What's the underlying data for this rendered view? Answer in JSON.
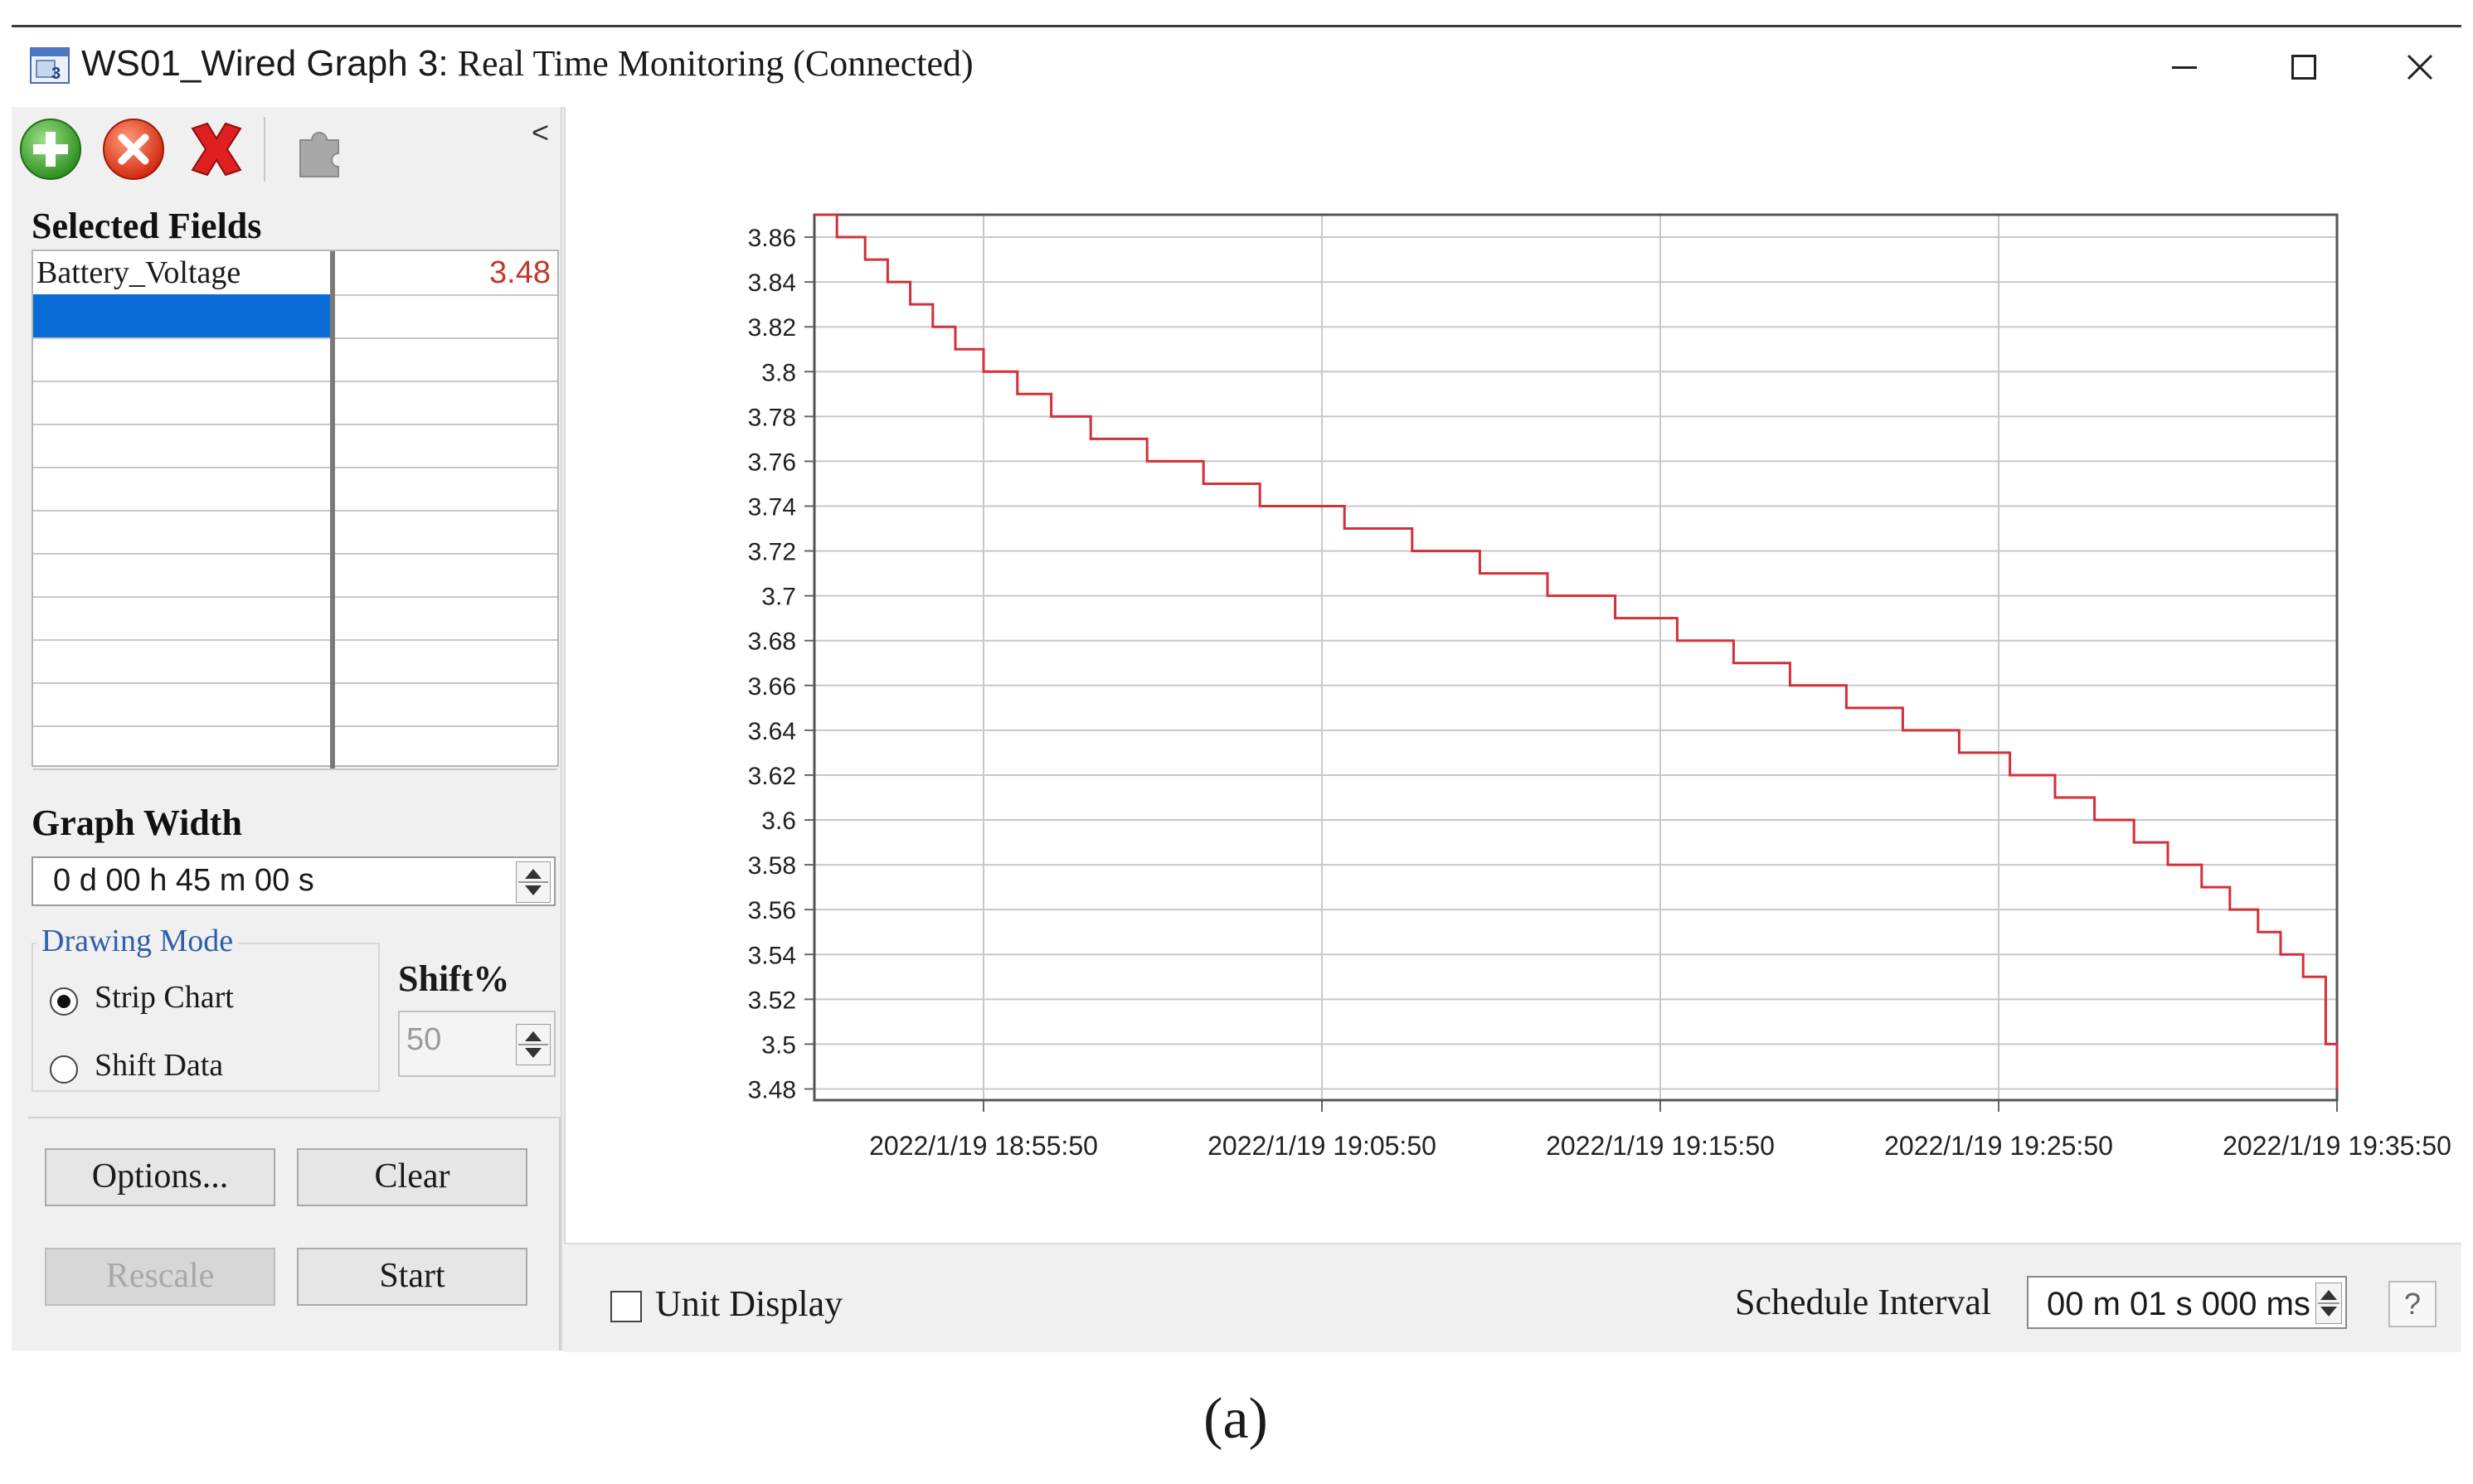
{
  "window": {
    "title_prefix": "WS01_Wired Graph 3:",
    "title_rest": " Real Time Monitoring (Connected)",
    "minimize_glyph": "–",
    "maximize_glyph": "☐",
    "close_glyph": "✕"
  },
  "toolbar": {
    "icons": [
      "add-icon",
      "remove-icon",
      "remove-all-icon",
      "puzzle-icon"
    ],
    "collapse_glyph": "<"
  },
  "selected_fields": {
    "label": "Selected Fields",
    "rows": [
      {
        "name": "Battery_Voltage",
        "value": "3.48"
      },
      {
        "name": "",
        "value": ""
      },
      {
        "name": "",
        "value": ""
      },
      {
        "name": "",
        "value": ""
      },
      {
        "name": "",
        "value": ""
      },
      {
        "name": "",
        "value": ""
      },
      {
        "name": "",
        "value": ""
      },
      {
        "name": "",
        "value": ""
      },
      {
        "name": "",
        "value": ""
      },
      {
        "name": "",
        "value": ""
      },
      {
        "name": "",
        "value": ""
      },
      {
        "name": "",
        "value": ""
      }
    ],
    "selected_row_index": 1
  },
  "graph_width": {
    "label": "Graph Width",
    "value": "0 d 00 h 45 m 00 s"
  },
  "drawing_mode": {
    "label": "Drawing Mode",
    "options": [
      "Strip Chart",
      "Shift Data"
    ],
    "selected": "Strip Chart"
  },
  "shift": {
    "label": "Shift%",
    "value": "50"
  },
  "buttons": {
    "options": "Options...",
    "clear": "Clear",
    "rescale": "Rescale",
    "start": "Start"
  },
  "bottom": {
    "unit_display": "Unit Display",
    "schedule_interval_label": "Schedule Interval",
    "schedule_interval_value": "00 m 01 s  000 ms",
    "help": "?"
  },
  "caption": "(a)",
  "colors": {
    "line": "#d2303a",
    "selection": "#0a6cd6",
    "grid": "#c8c8c8",
    "value_text": "#c0392b"
  },
  "chart_data": {
    "type": "line",
    "step": true,
    "x_tick_labels": [
      "2022/1/19 18:55:50",
      "2022/1/19 19:05:50",
      "2022/1/19 19:15:50",
      "2022/1/19 19:25:50",
      "2022/1/19 19:35:50"
    ],
    "xlim": [
      "2022/1/19 18:50:50",
      "2022/1/19 19:35:50"
    ],
    "y_tick_labels": [
      "3.86",
      "3.84",
      "3.82",
      "3.8",
      "3.78",
      "3.76",
      "3.74",
      "3.72",
      "3.7",
      "3.68",
      "3.66",
      "3.64",
      "3.62",
      "3.6",
      "3.58",
      "3.56",
      "3.54",
      "3.52",
      "3.5",
      "3.48"
    ],
    "ylim": [
      3.475,
      3.87
    ],
    "grid": true,
    "series": [
      {
        "x": [
          "2022/1/19 18:50:50",
          "2022/1/19 18:51:30",
          "2022/1/19 18:52:20",
          "2022/1/19 18:53:00",
          "2022/1/19 18:53:40",
          "2022/1/19 18:54:20",
          "2022/1/19 18:55:00",
          "2022/1/19 18:55:50",
          "2022/1/19 18:56:50",
          "2022/1/19 18:57:50",
          "2022/1/19 18:59:00",
          "2022/1/19 19:00:40",
          "2022/1/19 19:02:20",
          "2022/1/19 19:04:00",
          "2022/1/19 19:06:30",
          "2022/1/19 19:08:30",
          "2022/1/19 19:10:30",
          "2022/1/19 19:12:30",
          "2022/1/19 19:14:30",
          "2022/1/19 19:16:20",
          "2022/1/19 19:18:00",
          "2022/1/19 19:19:40",
          "2022/1/19 19:21:20",
          "2022/1/19 19:23:00",
          "2022/1/19 19:24:40",
          "2022/1/19 19:26:10",
          "2022/1/19 19:27:30",
          "2022/1/19 19:28:40",
          "2022/1/19 19:29:50",
          "2022/1/19 19:30:50",
          "2022/1/19 19:31:50",
          "2022/1/19 19:32:40",
          "2022/1/19 19:33:30",
          "2022/1/19 19:34:10",
          "2022/1/19 19:34:50",
          "2022/1/19 19:35:30",
          "2022/1/19 19:35:50"
        ],
        "y": [
          3.87,
          3.86,
          3.85,
          3.84,
          3.83,
          3.82,
          3.81,
          3.8,
          3.79,
          3.78,
          3.77,
          3.76,
          3.75,
          3.74,
          3.73,
          3.72,
          3.71,
          3.7,
          3.69,
          3.68,
          3.67,
          3.66,
          3.65,
          3.64,
          3.63,
          3.62,
          3.61,
          3.6,
          3.59,
          3.58,
          3.57,
          3.56,
          3.55,
          3.54,
          3.53,
          3.5,
          3.48
        ]
      }
    ]
  }
}
